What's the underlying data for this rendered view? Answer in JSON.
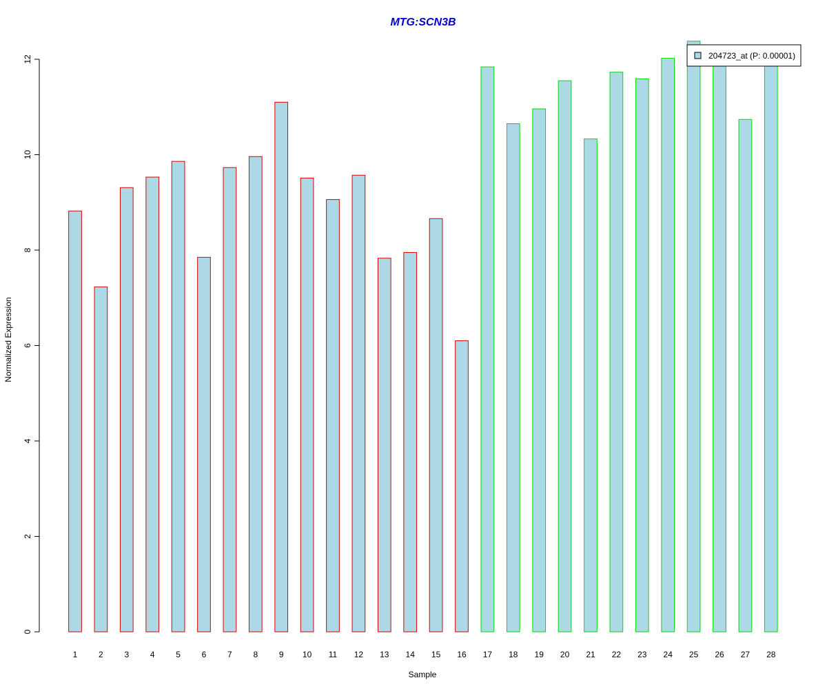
{
  "chart_data": {
    "type": "bar",
    "title": "MTG:SCN3B",
    "xlabel": "Sample",
    "ylabel": "Normalized Expression",
    "categories": [
      "1",
      "2",
      "3",
      "4",
      "5",
      "6",
      "7",
      "8",
      "9",
      "10",
      "11",
      "12",
      "13",
      "14",
      "15",
      "16",
      "17",
      "18",
      "19",
      "20",
      "21",
      "22",
      "23",
      "24",
      "25",
      "26",
      "27",
      "28"
    ],
    "values": [
      8.82,
      7.23,
      9.31,
      9.53,
      9.86,
      7.85,
      9.73,
      9.96,
      11.1,
      9.51,
      9.06,
      9.57,
      7.83,
      7.95,
      8.66,
      6.1,
      11.84,
      10.65,
      10.96,
      11.55,
      10.33,
      11.73,
      11.59,
      12.02,
      12.38,
      11.95,
      10.74,
      11.95
    ],
    "groups": [
      1,
      1,
      1,
      1,
      1,
      1,
      1,
      1,
      1,
      1,
      1,
      1,
      1,
      1,
      1,
      1,
      2,
      2,
      2,
      2,
      2,
      2,
      2,
      2,
      2,
      2,
      2,
      2
    ],
    "ylim": [
      0,
      12
    ],
    "yticks": [
      0,
      2,
      4,
      6,
      8,
      10,
      12
    ],
    "grid": false,
    "legend": {
      "placement": "top-right",
      "entries": [
        "204723_at (P: 0.00001)"
      ]
    }
  },
  "colors": {
    "title": "#0000cc",
    "bar_fill": "#add8e6",
    "group1_border": "#dd0000",
    "group2_border": "#00dd00"
  }
}
